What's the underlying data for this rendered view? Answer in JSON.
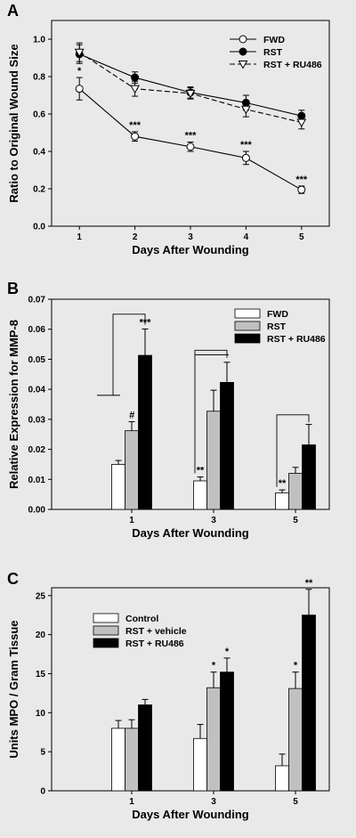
{
  "chart_data": [
    {
      "panel": "A",
      "type": "line",
      "xlabel": "Days After Wounding",
      "ylabel": "Ratio to Original Wound Size",
      "x": [
        1,
        2,
        3,
        4,
        5
      ],
      "xticks": [
        "1",
        "2",
        "3",
        "4",
        "5"
      ],
      "xlim": [
        0.5,
        5.5
      ],
      "ylim": [
        0,
        1.1
      ],
      "yticks": [
        "0.0",
        "0.2",
        "0.4",
        "0.6",
        "0.8",
        "1.0"
      ],
      "legend_position": "top-right",
      "series": [
        {
          "name": "FWD",
          "values": [
            0.735,
            0.48,
            0.425,
            0.365,
            0.195
          ],
          "errors": [
            0.06,
            0.025,
            0.025,
            0.035,
            0.02
          ],
          "marker": "open-circle",
          "dash": "solid",
          "annotations": [
            "*",
            "***",
            "***",
            "***",
            "***"
          ]
        },
        {
          "name": "RST",
          "values": [
            0.92,
            0.795,
            0.715,
            0.66,
            0.59
          ],
          "errors": [
            0.05,
            0.03,
            0.03,
            0.04,
            0.03
          ],
          "marker": "filled-circle",
          "dash": "solid"
        },
        {
          "name": "RST + RU486",
          "values": [
            0.93,
            0.735,
            0.71,
            0.625,
            0.555
          ],
          "errors": [
            0.05,
            0.04,
            0.03,
            0.04,
            0.035
          ],
          "marker": "open-triangle",
          "dash": "dashed"
        }
      ]
    },
    {
      "panel": "B",
      "type": "bar",
      "xlabel": "Days After Wounding",
      "ylabel": "Relative Expression for MMP-8",
      "categories": [
        "1",
        "3",
        "5"
      ],
      "ylim": [
        0,
        0.07
      ],
      "yticks": [
        "0.00",
        "0.01",
        "0.02",
        "0.03",
        "0.04",
        "0.05",
        "0.06",
        "0.07"
      ],
      "legend_position": "top-right",
      "series": [
        {
          "name": "FWD",
          "color": "#ffffff",
          "values": [
            0.015,
            0.0095,
            0.0055
          ],
          "errors": [
            0.0013,
            0.0013,
            0.001
          ],
          "annotations": [
            "",
            "**",
            "**"
          ]
        },
        {
          "name": "RST",
          "color": "#c0c0c0",
          "values": [
            0.0262,
            0.0327,
            0.012
          ],
          "errors": [
            0.003,
            0.007,
            0.002
          ],
          "annotations": [
            "#",
            "",
            ""
          ]
        },
        {
          "name": "RST + RU486",
          "color": "#000000",
          "values": [
            0.0513,
            0.0423,
            0.0215
          ],
          "errors": [
            0.0088,
            0.0067,
            0.0068
          ],
          "annotations": [
            "***",
            "",
            ""
          ]
        }
      ]
    },
    {
      "panel": "C",
      "type": "bar",
      "xlabel": "Days After Wounding",
      "ylabel": "Units MPO / Gram Tissue",
      "categories": [
        "1",
        "3",
        "5"
      ],
      "ylim": [
        0,
        26
      ],
      "yticks": [
        "0",
        "5",
        "10",
        "15",
        "20",
        "25"
      ],
      "legend_position": "top-left",
      "series": [
        {
          "name": "Control",
          "color": "#ffffff",
          "values": [
            8.0,
            6.7,
            3.2
          ],
          "errors": [
            1.0,
            1.8,
            1.5
          ],
          "annotations": [
            "",
            "",
            ""
          ]
        },
        {
          "name": "RST + vehicle",
          "color": "#c0c0c0",
          "values": [
            8.0,
            13.2,
            13.1
          ],
          "errors": [
            1.1,
            2.0,
            2.1
          ],
          "annotations": [
            "",
            "*",
            "*"
          ]
        },
        {
          "name": "RST + RU486",
          "color": "#000000",
          "values": [
            11.0,
            15.2,
            22.5
          ],
          "errors": [
            0.7,
            1.8,
            3.3
          ],
          "annotations": [
            "",
            "*",
            "**"
          ]
        }
      ]
    }
  ]
}
